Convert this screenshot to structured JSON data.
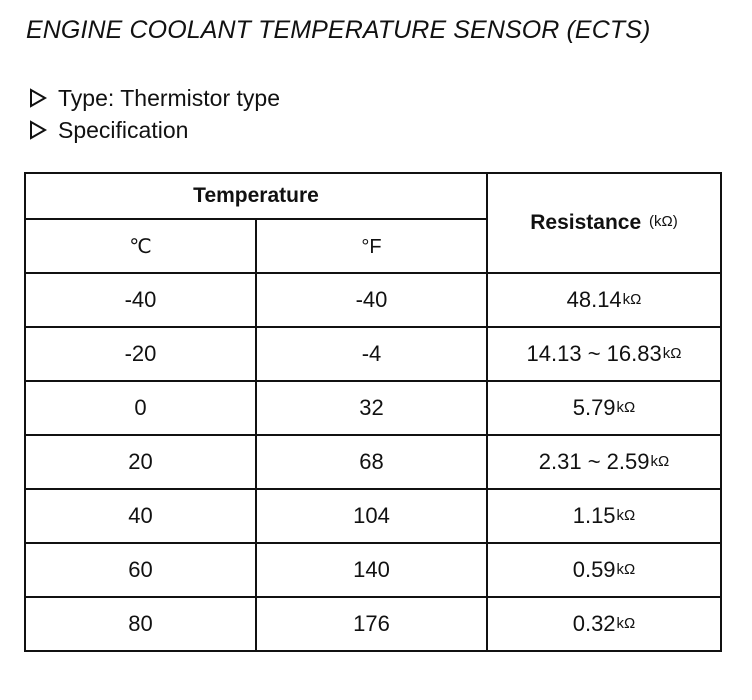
{
  "document": {
    "title": "ENGINE COOLANT TEMPERATURE SENSOR (ECTS)",
    "type_line": "Type: Thermistor type",
    "spec_line": "Specification"
  },
  "table": {
    "header_group": "Temperature",
    "header_c": "℃",
    "header_f": "°F",
    "header_resistance": "Resistance",
    "header_resistance_unit": "(kΩ)",
    "unit": "kΩ",
    "rows": [
      {
        "c": "-40",
        "f": "-40",
        "resistance": "48.14"
      },
      {
        "c": "-20",
        "f": "-4",
        "resistance": "14.13 ~ 16.83"
      },
      {
        "c": "0",
        "f": "32",
        "resistance": "5.79"
      },
      {
        "c": "20",
        "f": "68",
        "resistance": "2.31 ~ 2.59"
      },
      {
        "c": "40",
        "f": "104",
        "resistance": "1.15"
      },
      {
        "c": "60",
        "f": "140",
        "resistance": "0.59"
      },
      {
        "c": "80",
        "f": "176",
        "resistance": "0.32"
      }
    ]
  }
}
